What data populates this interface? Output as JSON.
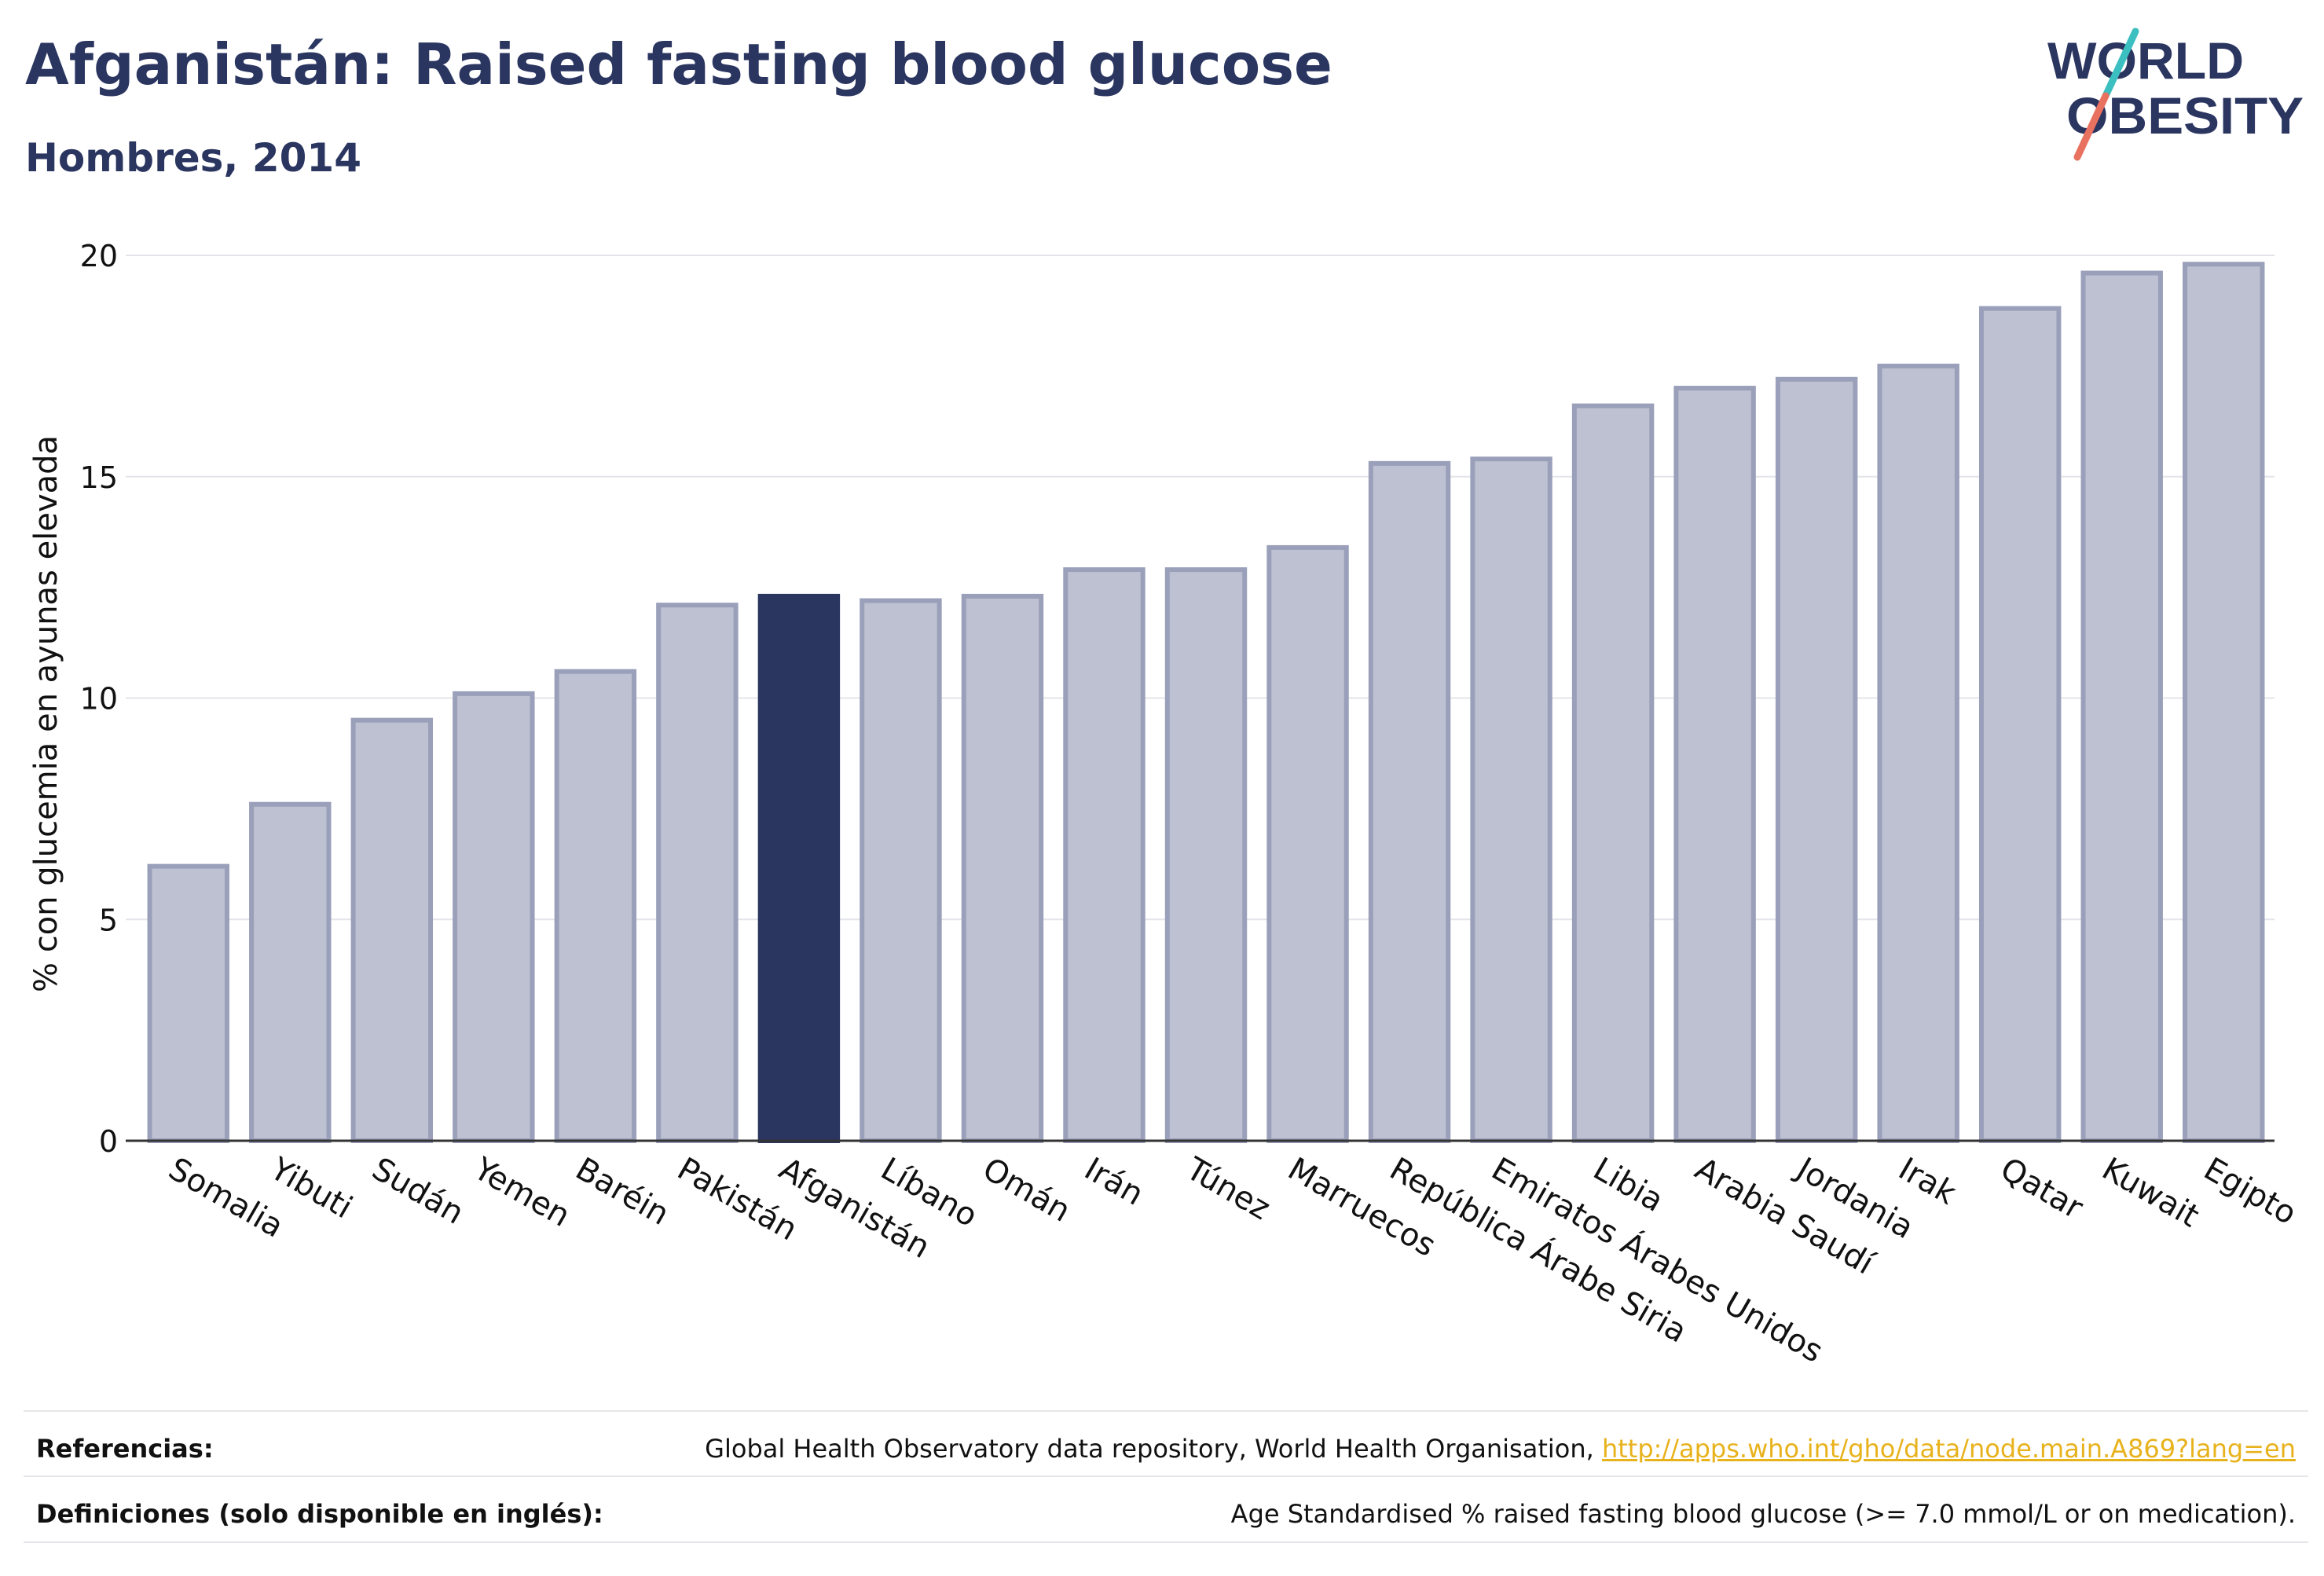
{
  "header": {
    "title": "Afganistán: Raised fasting blood glucose",
    "subtitle": "Hombres, 2014"
  },
  "logo": {
    "line1": "WORLD",
    "line2": "OBESITY",
    "accent_teal": "#3bbfc0",
    "accent_red": "#e8715f"
  },
  "colors": {
    "bar": "#bec1d1",
    "bar_stroke": "#9aa0ba",
    "highlight": "#2a3560",
    "axis_text": "#111111"
  },
  "chart_data": {
    "type": "bar",
    "ylabel": "% con glucemia en ayunas elevada",
    "ylim": [
      0,
      20
    ],
    "yticks": [
      0,
      5,
      10,
      15,
      20
    ],
    "grid": true,
    "highlight": "Afganistán",
    "categories": [
      "Somalia",
      "Yibuti",
      "Sudán",
      "Yemen",
      "Baréin",
      "Pakistán",
      "Afganistán",
      "Líbano",
      "Omán",
      "Irán",
      "Túnez",
      "Marruecos",
      "República Árabe Siria",
      "Emiratos Árabes Unidos",
      "Libia",
      "Arabia Saudí",
      "Jordania",
      "Irak",
      "Qatar",
      "Kuwait",
      "Egipto"
    ],
    "values": [
      6.2,
      7.6,
      9.5,
      10.1,
      10.6,
      12.1,
      12.3,
      12.2,
      12.3,
      12.9,
      12.9,
      13.4,
      15.3,
      15.4,
      16.6,
      17.0,
      17.2,
      17.5,
      18.8,
      19.6,
      19.8
    ]
  },
  "footer": {
    "references_label": "Referencias:",
    "references_text": "Global Health Observatory data repository, World Health Organisation, ",
    "references_link": "http://apps.who.int/gho/data/node.main.A869?lang=en",
    "definitions_label": "Definiciones (solo disponible en inglés):",
    "definitions_text": "Age Standardised % raised fasting blood glucose (>= 7.0 mmol/L or on medication)."
  }
}
